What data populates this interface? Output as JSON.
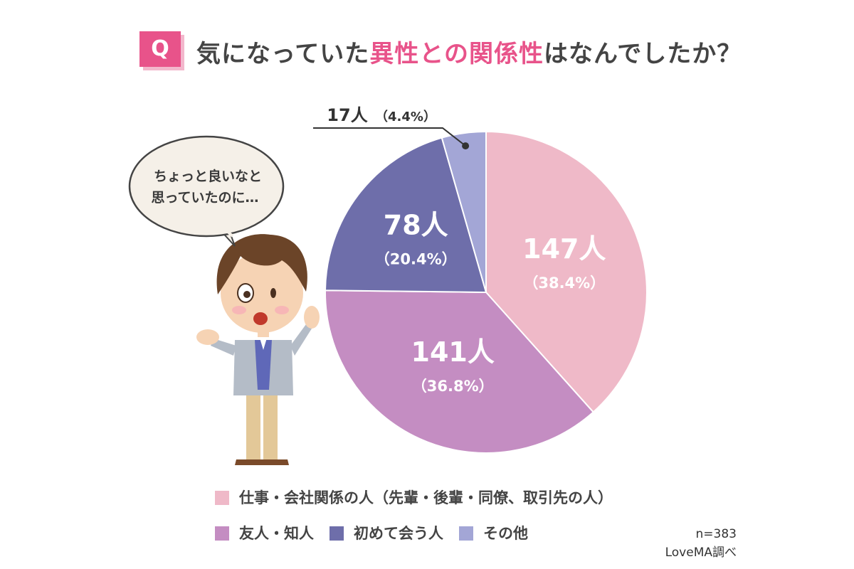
{
  "title": {
    "badge": "Q",
    "part1": "気になっていた",
    "accent": "異性との関係性",
    "part2": "はなんでしたか？"
  },
  "speech_bubble": {
    "line1": "ちょっと良いなと",
    "line2": "思っていたのに…"
  },
  "chart_data": {
    "type": "pie",
    "title": "気になっていた異性との関係性はなんでしたか？",
    "start_angle_deg": 0,
    "direction": "clockwise",
    "slices": [
      {
        "name": "仕事・会社関係の人（先輩・後輩・同僚、取引先の人）",
        "value": 147,
        "percent": 38.4,
        "count_label": "147人",
        "percent_label": "（38.4%）",
        "color": "#efb9c8"
      },
      {
        "name": "友人・知人",
        "value": 141,
        "percent": 36.8,
        "count_label": "141人",
        "percent_label": "（36.8%）",
        "color": "#c48dc2"
      },
      {
        "name": "初めて会う人",
        "value": 78,
        "percent": 20.4,
        "count_label": "78人",
        "percent_label": "（20.4%）",
        "color": "#6e6eaa"
      },
      {
        "name": "その他",
        "value": 17,
        "percent": 4.4,
        "count_label": "17人",
        "percent_label": "（4.4%）",
        "color": "#a3a6d6"
      }
    ],
    "legend_position": "bottom",
    "n_label": "n=383",
    "source_label": "LoveMA調べ"
  },
  "legend": {
    "row1": [
      {
        "label": "仕事・会社関係の人（先輩・後輩・同僚、取引先の人）",
        "color": "#efb9c8"
      }
    ],
    "row2": [
      {
        "label": "友人・知人",
        "color": "#c48dc2"
      },
      {
        "label": "初めて会う人",
        "color": "#6e6eaa"
      },
      {
        "label": "その他",
        "color": "#a3a6d6"
      }
    ]
  }
}
